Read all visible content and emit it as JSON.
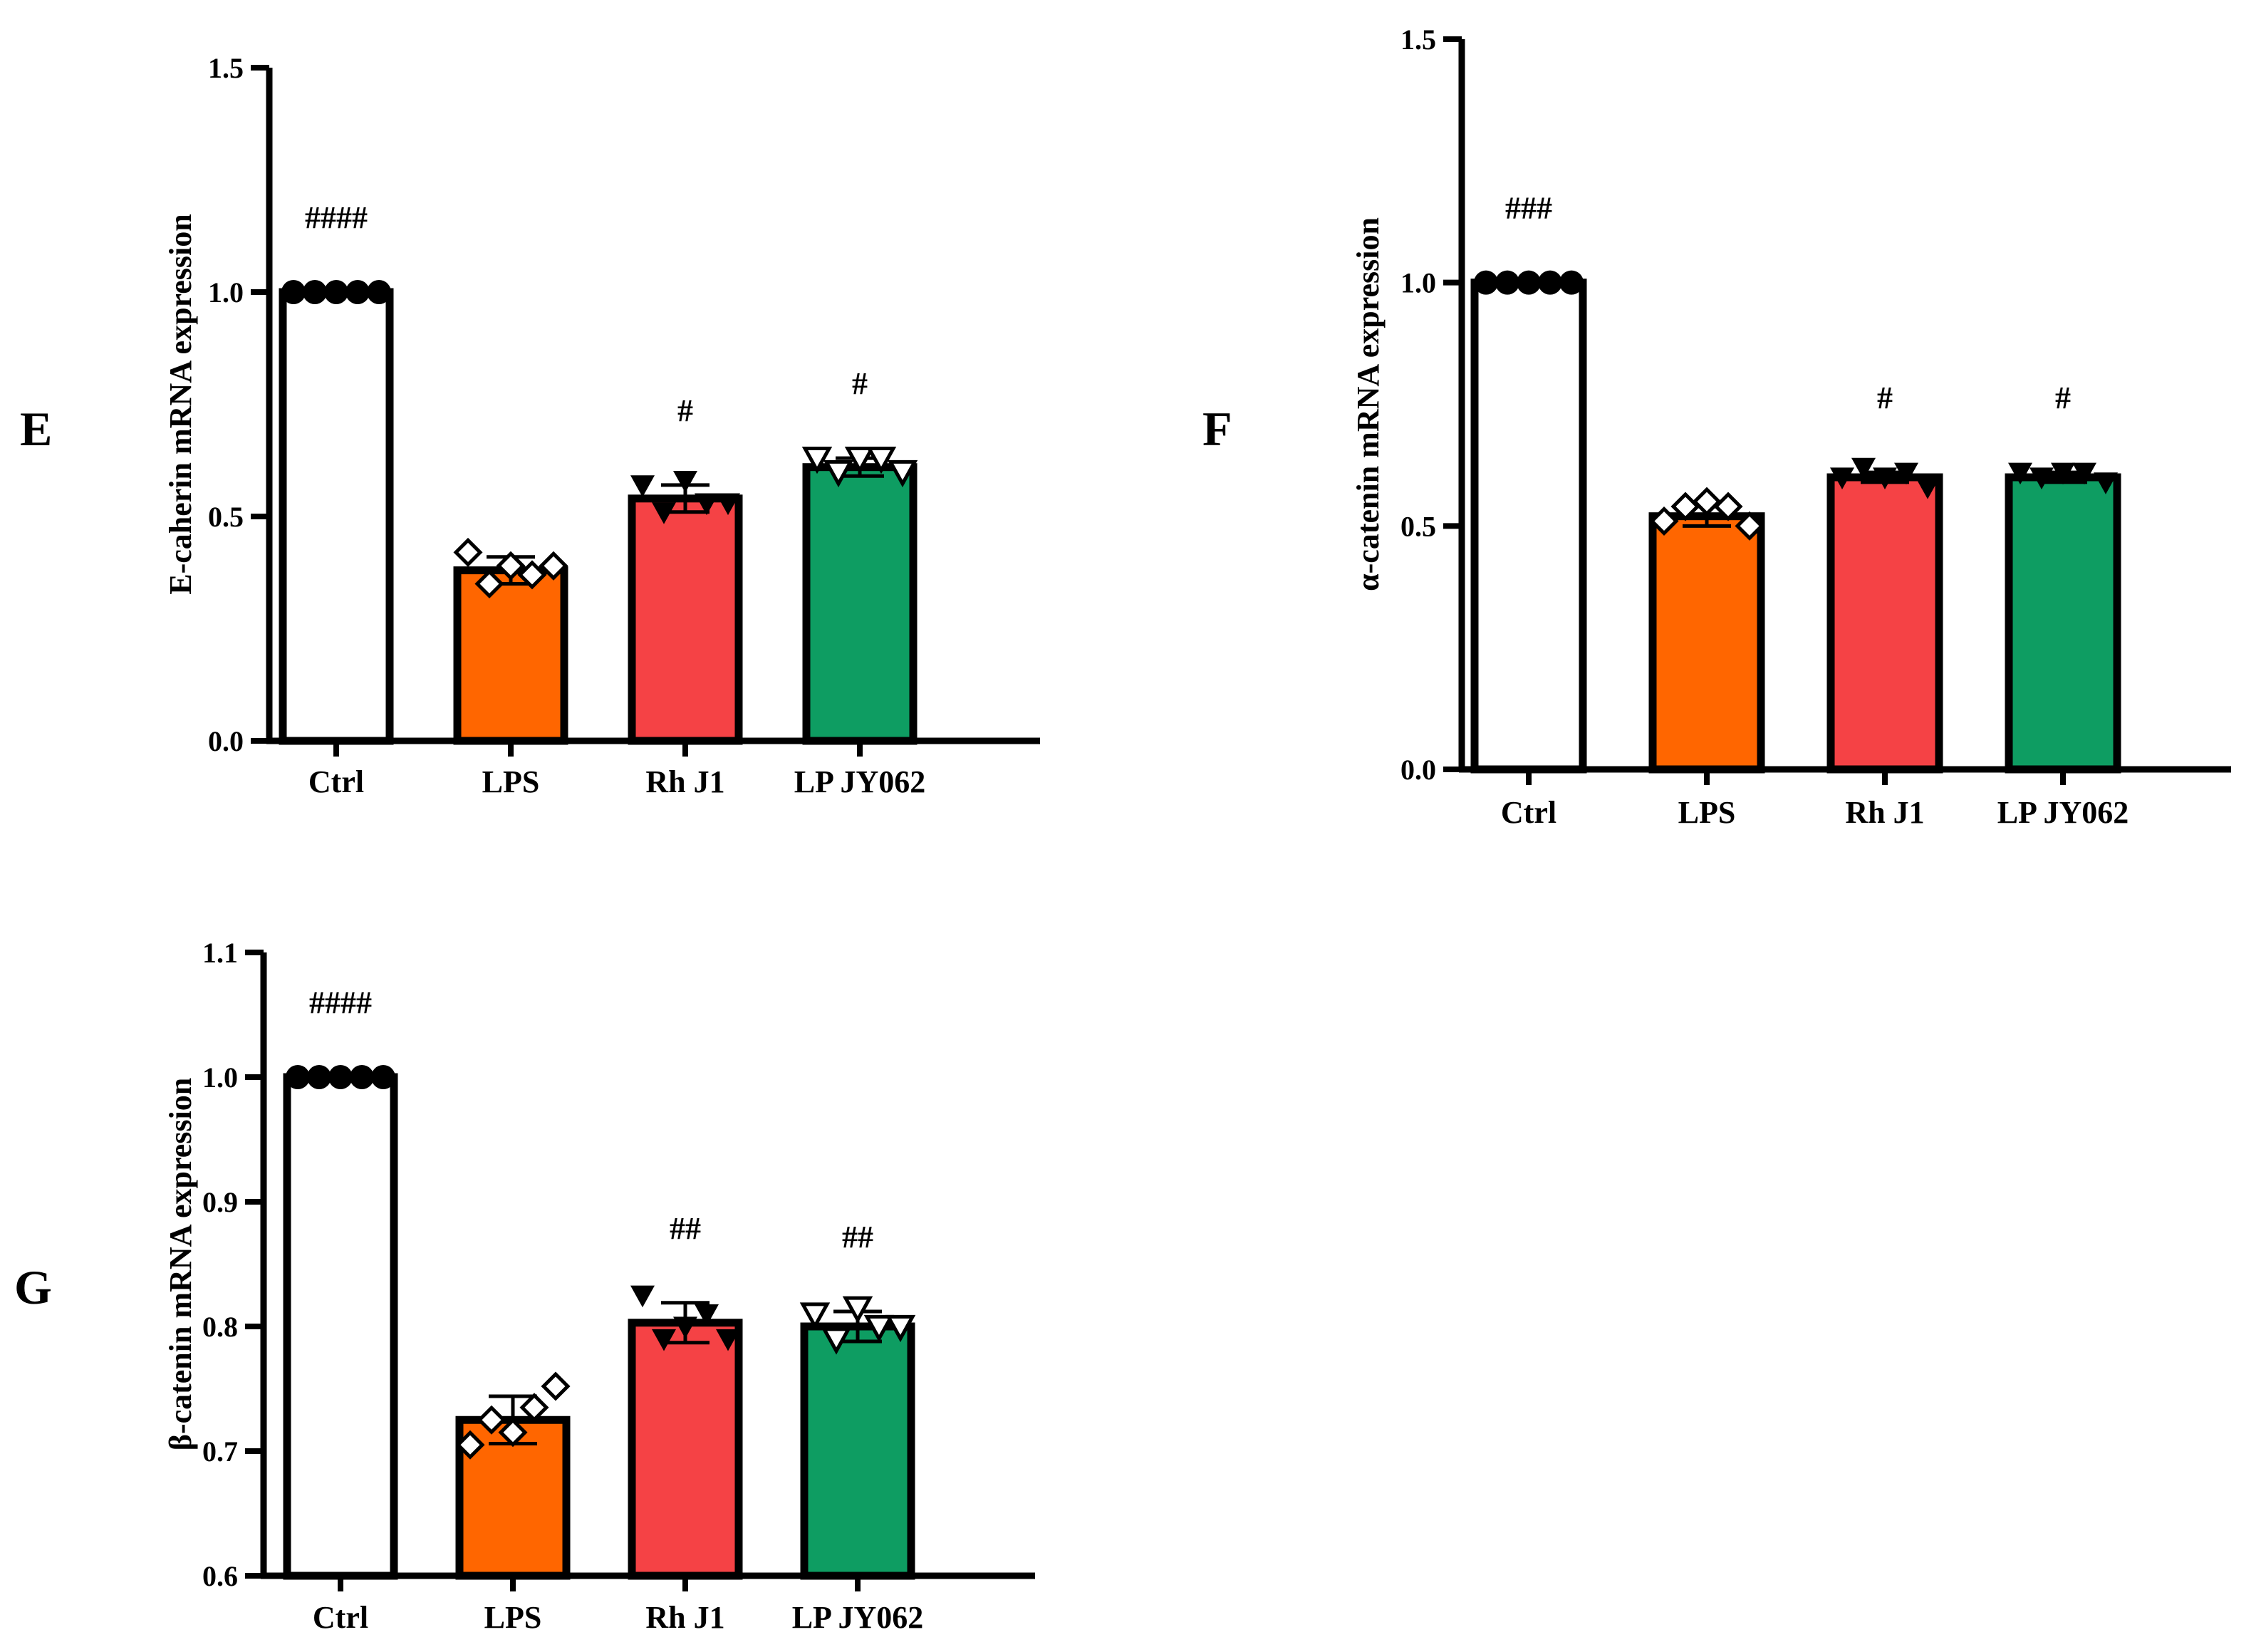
{
  "chart_data": [
    {
      "panel": "E",
      "type": "bar",
      "categories": [
        "Ctrl",
        "LPS",
        "Rh J1",
        "LP JY062"
      ],
      "values": [
        1.0,
        0.38,
        0.54,
        0.61
      ],
      "errors": [
        0.0,
        0.03,
        0.03,
        0.02
      ],
      "points": [
        [
          1.0,
          1.0,
          1.0,
          1.0,
          1.0
        ],
        [
          0.42,
          0.35,
          0.39,
          0.37,
          0.39
        ],
        [
          0.57,
          0.51,
          0.58,
          0.53,
          0.53
        ],
        [
          0.63,
          0.6,
          0.63,
          0.63,
          0.6
        ]
      ],
      "markers": [
        "circle",
        "diamond",
        "triangle-down",
        "triangle-down-open"
      ],
      "significance": [
        "####",
        "",
        "#",
        "#"
      ],
      "ylabel": "E-caherin mRNA expression",
      "ylim": [
        0,
        1.5
      ],
      "yticks": [
        0.0,
        0.5,
        1.0,
        1.5
      ],
      "ytick_labels": [
        "0.0",
        "0.5",
        "1.0",
        "1.5"
      ]
    },
    {
      "panel": "F",
      "type": "bar",
      "categories": [
        "Ctrl",
        "LPS",
        "Rh J1",
        "LP JY062"
      ],
      "values": [
        1.0,
        0.52,
        0.6,
        0.6
      ],
      "errors": [
        0.0,
        0.02,
        0.01,
        0.01
      ],
      "points": [
        [
          1.0,
          1.0,
          1.0,
          1.0,
          1.0
        ],
        [
          0.51,
          0.54,
          0.55,
          0.54,
          0.5
        ],
        [
          0.6,
          0.62,
          0.6,
          0.61,
          0.58
        ],
        [
          0.61,
          0.6,
          0.61,
          0.61,
          0.59
        ]
      ],
      "markers": [
        "circle",
        "diamond",
        "triangle-down",
        "triangle-down"
      ],
      "significance": [
        "###",
        "",
        "#",
        "#"
      ],
      "ylabel": "α-catenin mRNA expression",
      "ylim": [
        0,
        1.5
      ],
      "yticks": [
        0.0,
        0.5,
        1.0,
        1.5
      ],
      "ytick_labels": [
        "0.0",
        "0.5",
        "1.0",
        "1.5"
      ]
    },
    {
      "panel": "G",
      "type": "bar",
      "categories": [
        "Ctrl",
        "LPS",
        "Rh J1",
        "LP JY062"
      ],
      "values": [
        1.0,
        0.725,
        0.803,
        0.8
      ],
      "errors": [
        0.0,
        0.019,
        0.016,
        0.012
      ],
      "points": [
        [
          1.0,
          1.0,
          1.0,
          1.0,
          1.0
        ],
        [
          0.705,
          0.725,
          0.715,
          0.735,
          0.752
        ],
        [
          0.825,
          0.79,
          0.8,
          0.81,
          0.79
        ],
        [
          0.81,
          0.79,
          0.815,
          0.8,
          0.8
        ]
      ],
      "markers": [
        "circle",
        "diamond",
        "triangle-down",
        "triangle-down-open"
      ],
      "significance": [
        "####",
        "",
        "##",
        "##"
      ],
      "ylabel": "β-catenin mRNA expression",
      "ylim": [
        0.6,
        1.1
      ],
      "yticks": [
        0.6,
        0.7,
        0.8,
        0.9,
        1.0,
        1.1
      ],
      "ytick_labels": [
        "0.6",
        "0.7",
        "0.8",
        "0.9",
        "1.0",
        "1.1"
      ]
    }
  ],
  "colors": {
    "Ctrl": "#ffffff",
    "LPS": "#ff6600",
    "Rh J1": "#f54245",
    "LP JY062": "#0e9d62"
  }
}
